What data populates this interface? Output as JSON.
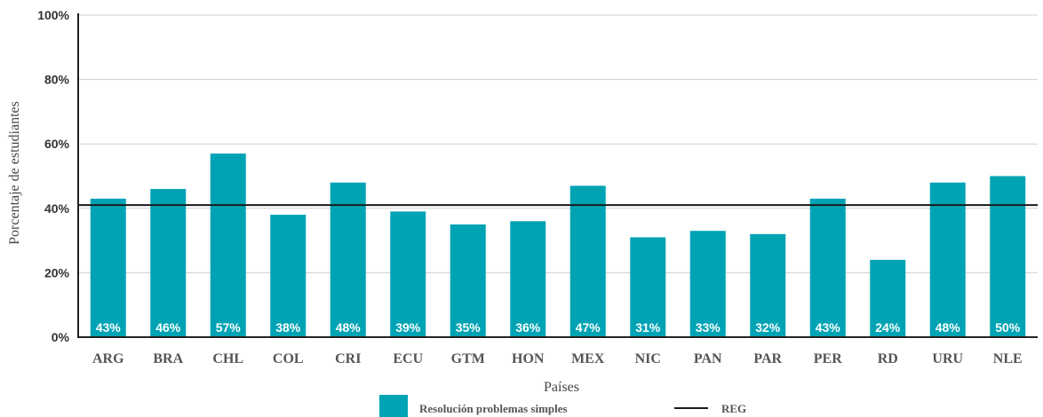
{
  "chart_data": {
    "type": "bar",
    "categories": [
      "ARG",
      "BRA",
      "CHL",
      "COL",
      "CRI",
      "ECU",
      "GTM",
      "HON",
      "MEX",
      "NIC",
      "PAN",
      "PAR",
      "PER",
      "RD",
      "URU",
      "NLE"
    ],
    "series": [
      {
        "name": "Resolución problemas simples",
        "values": [
          43,
          46,
          57,
          38,
          48,
          39,
          35,
          36,
          47,
          31,
          33,
          32,
          43,
          24,
          48,
          50
        ],
        "labels": [
          "43%",
          "46%",
          "57%",
          "38%",
          "48%",
          "39%",
          "35%",
          "36%",
          "47%",
          "31%",
          "33%",
          "32%",
          "43%",
          "24%",
          "48%",
          "50%"
        ]
      }
    ],
    "reference_line": {
      "name": "REG",
      "value": 41
    },
    "xlabel": "Países",
    "ylabel": "Porcentaje de estudiantes",
    "ylim": [
      0,
      100
    ],
    "y_ticks": [
      0,
      20,
      40,
      60,
      80,
      100
    ],
    "y_tick_labels": [
      "0%",
      "20%",
      "40%",
      "60%",
      "80%",
      "100%"
    ],
    "grid": true,
    "legend_position": "bottom",
    "colors": {
      "bar": "#00A3B4",
      "reference": "#1a1a1a",
      "grid": "#cfcfcf",
      "axis": "#222222"
    }
  }
}
